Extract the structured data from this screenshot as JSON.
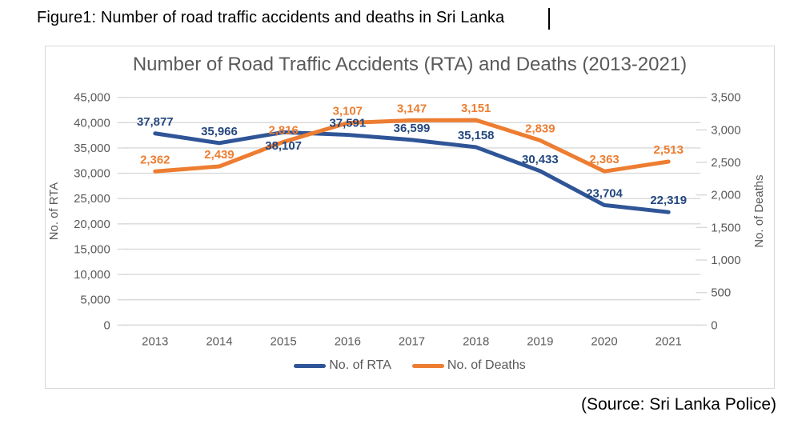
{
  "document": {
    "caption": "Figure1: Number of road traffic accidents and deaths in Sri Lanka",
    "source": "(Source: Sri Lanka Police)"
  },
  "chart_data": {
    "type": "line",
    "title": "Number of Road Traffic Accidents (RTA) and Deaths (2013-2021)",
    "categories": [
      "2013",
      "2014",
      "2015",
      "2016",
      "2017",
      "2018",
      "2019",
      "2020",
      "2021"
    ],
    "series": [
      {
        "name": "No. of RTA",
        "axis": "left",
        "color": "#2f5597",
        "label_color": "#24477e",
        "values": [
          37877,
          35966,
          38107,
          37591,
          36599,
          35158,
          30433,
          23704,
          22319
        ]
      },
      {
        "name": "No. of Deaths",
        "axis": "right",
        "color": "#ed7d31",
        "label_color": "#ed7d31",
        "values": [
          2362,
          2439,
          2816,
          3107,
          3147,
          3151,
          2839,
          2363,
          2513
        ]
      }
    ],
    "left_axis": {
      "title": "No. of RTA",
      "min": 0,
      "max": 45000,
      "step": 5000
    },
    "right_axis": {
      "title": "No. of Deaths",
      "min": 0,
      "max": 3500,
      "step": 500
    },
    "grid": true,
    "legend_position": "bottom",
    "data_labels": true,
    "colors": {
      "grid": "#d9d9d9",
      "axis_text": "#595959",
      "title_text": "#595959"
    }
  }
}
